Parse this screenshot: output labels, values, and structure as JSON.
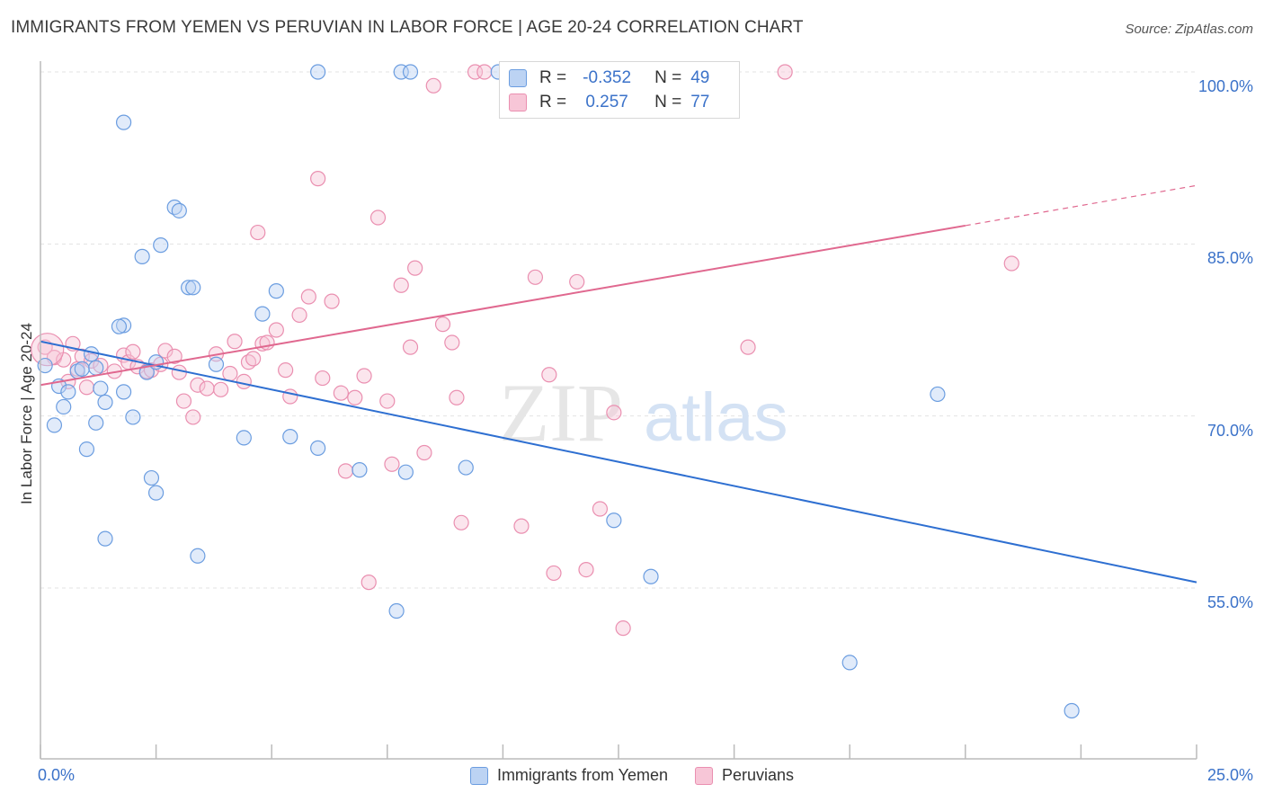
{
  "header": {
    "title": "IMMIGRANTS FROM YEMEN VS PERUVIAN IN LABOR FORCE | AGE 20-24 CORRELATION CHART",
    "source": "Source: ZipAtlas.com"
  },
  "stats": {
    "r_label": "R =",
    "n_label": "N =",
    "yemen": {
      "r": "-0.352",
      "n": "49"
    },
    "peru": {
      "r": "0.257",
      "n": "77"
    }
  },
  "watermark": {
    "zip": "ZIP",
    "atlas": "atlas"
  },
  "chart_data": {
    "type": "scatter",
    "title": "IMMIGRANTS FROM YEMEN VS PERUVIAN IN LABOR FORCE | AGE 20-24 CORRELATION CHART",
    "ylabel": "In Labor Force | Age 20-24",
    "xlabel": "",
    "xlim": [
      0,
      25
    ],
    "ylim": [
      40,
      101
    ],
    "x_tick_labels": [
      "0.0%",
      "25.0%"
    ],
    "y_ticks": [
      55,
      70,
      85,
      100
    ],
    "y_tick_labels": [
      "55.0%",
      "70.0%",
      "85.0%",
      "100.0%"
    ],
    "grid": true,
    "legend": [
      "Immigrants from Yemen",
      "Peruvians"
    ],
    "colors": {
      "yemen": "#6b9de0",
      "yemen_fill": "#bcd3f3",
      "yemen_line": "#2e6fd1",
      "peru": "#ea8fb0",
      "peru_fill": "#f7c6d7",
      "peru_line": "#e0688f"
    },
    "series": [
      {
        "name": "Immigrants from Yemen",
        "r": -0.352,
        "n": 49,
        "trend": {
          "x": [
            0,
            25
          ],
          "y": [
            76.5,
            55.5
          ]
        },
        "points": [
          [
            0.1,
            74.4
          ],
          [
            0.3,
            69.2
          ],
          [
            0.4,
            72.6
          ],
          [
            0.6,
            72.1
          ],
          [
            0.8,
            73.9
          ],
          [
            0.9,
            74.1
          ],
          [
            1.0,
            67.1
          ],
          [
            1.1,
            75.4
          ],
          [
            1.2,
            69.4
          ],
          [
            1.3,
            72.4
          ],
          [
            1.4,
            71.2
          ],
          [
            1.8,
            95.6
          ],
          [
            1.4,
            59.3
          ],
          [
            1.8,
            77.9
          ],
          [
            1.7,
            77.8
          ],
          [
            1.8,
            72.1
          ],
          [
            2.0,
            69.9
          ],
          [
            2.3,
            73.8
          ],
          [
            2.5,
            74.7
          ],
          [
            2.6,
            84.9
          ],
          [
            2.4,
            64.6
          ],
          [
            2.2,
            83.9
          ],
          [
            2.5,
            63.3
          ],
          [
            2.9,
            88.2
          ],
          [
            3.0,
            87.9
          ],
          [
            3.2,
            81.2
          ],
          [
            3.3,
            81.2
          ],
          [
            3.4,
            57.8
          ],
          [
            3.8,
            74.5
          ],
          [
            4.4,
            68.1
          ],
          [
            4.8,
            78.9
          ],
          [
            5.1,
            80.9
          ],
          [
            5.4,
            68.2
          ],
          [
            6.0,
            67.2
          ],
          [
            6.0,
            100.0
          ],
          [
            6.9,
            65.3
          ],
          [
            7.8,
            100.0
          ],
          [
            8.0,
            100.0
          ],
          [
            7.7,
            53.0
          ],
          [
            7.9,
            65.1
          ],
          [
            9.2,
            65.5
          ],
          [
            9.9,
            100.0
          ],
          [
            12.4,
            60.9
          ],
          [
            13.2,
            56.0
          ],
          [
            17.5,
            48.5
          ],
          [
            19.4,
            71.9
          ],
          [
            22.3,
            44.3
          ],
          [
            0.5,
            70.8
          ],
          [
            1.2,
            74.2
          ]
        ]
      },
      {
        "name": "Peruvians",
        "r": 0.257,
        "n": 77,
        "trend": {
          "x": [
            0,
            20
          ],
          "y": [
            72.7,
            86.6
          ]
        },
        "trend_dashed": {
          "x": [
            20,
            25
          ],
          "y": [
            86.6,
            90.1
          ]
        },
        "points": [
          [
            0.1,
            76.0
          ],
          [
            0.3,
            75.1
          ],
          [
            0.5,
            74.9
          ],
          [
            0.6,
            73.0
          ],
          [
            0.7,
            76.3
          ],
          [
            0.8,
            74.1
          ],
          [
            0.9,
            75.2
          ],
          [
            1.0,
            72.5
          ],
          [
            1.1,
            74.8
          ],
          [
            1.3,
            74.4
          ],
          [
            1.6,
            73.9
          ],
          [
            1.8,
            75.3
          ],
          [
            1.9,
            74.7
          ],
          [
            2.0,
            75.6
          ],
          [
            2.1,
            74.3
          ],
          [
            2.3,
            73.9
          ],
          [
            2.4,
            74.0
          ],
          [
            2.6,
            74.5
          ],
          [
            2.7,
            75.7
          ],
          [
            2.9,
            75.2
          ],
          [
            3.0,
            73.8
          ],
          [
            3.1,
            71.3
          ],
          [
            3.3,
            69.9
          ],
          [
            3.4,
            72.7
          ],
          [
            3.6,
            72.4
          ],
          [
            3.8,
            75.4
          ],
          [
            3.9,
            72.3
          ],
          [
            4.1,
            73.7
          ],
          [
            4.2,
            76.5
          ],
          [
            4.4,
            73.0
          ],
          [
            4.5,
            74.7
          ],
          [
            4.6,
            75.0
          ],
          [
            4.7,
            86.0
          ],
          [
            4.8,
            76.3
          ],
          [
            4.9,
            76.4
          ],
          [
            5.1,
            77.5
          ],
          [
            5.3,
            74.0
          ],
          [
            5.4,
            71.7
          ],
          [
            5.6,
            78.8
          ],
          [
            5.8,
            80.4
          ],
          [
            6.0,
            90.7
          ],
          [
            6.1,
            73.3
          ],
          [
            6.3,
            80.0
          ],
          [
            6.5,
            72.0
          ],
          [
            6.6,
            65.2
          ],
          [
            6.8,
            71.6
          ],
          [
            7.0,
            73.5
          ],
          [
            7.1,
            55.5
          ],
          [
            7.3,
            87.3
          ],
          [
            7.5,
            71.3
          ],
          [
            7.6,
            65.8
          ],
          [
            7.8,
            81.4
          ],
          [
            8.0,
            76.0
          ],
          [
            8.1,
            82.9
          ],
          [
            8.3,
            66.8
          ],
          [
            8.5,
            98.8
          ],
          [
            8.7,
            78.0
          ],
          [
            8.9,
            76.4
          ],
          [
            9.0,
            71.6
          ],
          [
            9.1,
            60.7
          ],
          [
            9.4,
            100.0
          ],
          [
            9.6,
            100.0
          ],
          [
            10.2,
            99.6
          ],
          [
            10.4,
            60.4
          ],
          [
            10.7,
            82.1
          ],
          [
            10.9,
            100.0
          ],
          [
            11.0,
            73.6
          ],
          [
            11.1,
            56.3
          ],
          [
            11.6,
            81.7
          ],
          [
            11.8,
            56.6
          ],
          [
            12.1,
            61.9
          ],
          [
            12.4,
            70.3
          ],
          [
            12.6,
            51.5
          ],
          [
            14.0,
            100.0
          ],
          [
            15.3,
            76.0
          ],
          [
            16.1,
            100.0
          ],
          [
            21.0,
            83.3
          ]
        ]
      }
    ]
  },
  "bottom_legend": {
    "yemen_label": "Immigrants from Yemen",
    "peru_label": "Peruvians"
  }
}
